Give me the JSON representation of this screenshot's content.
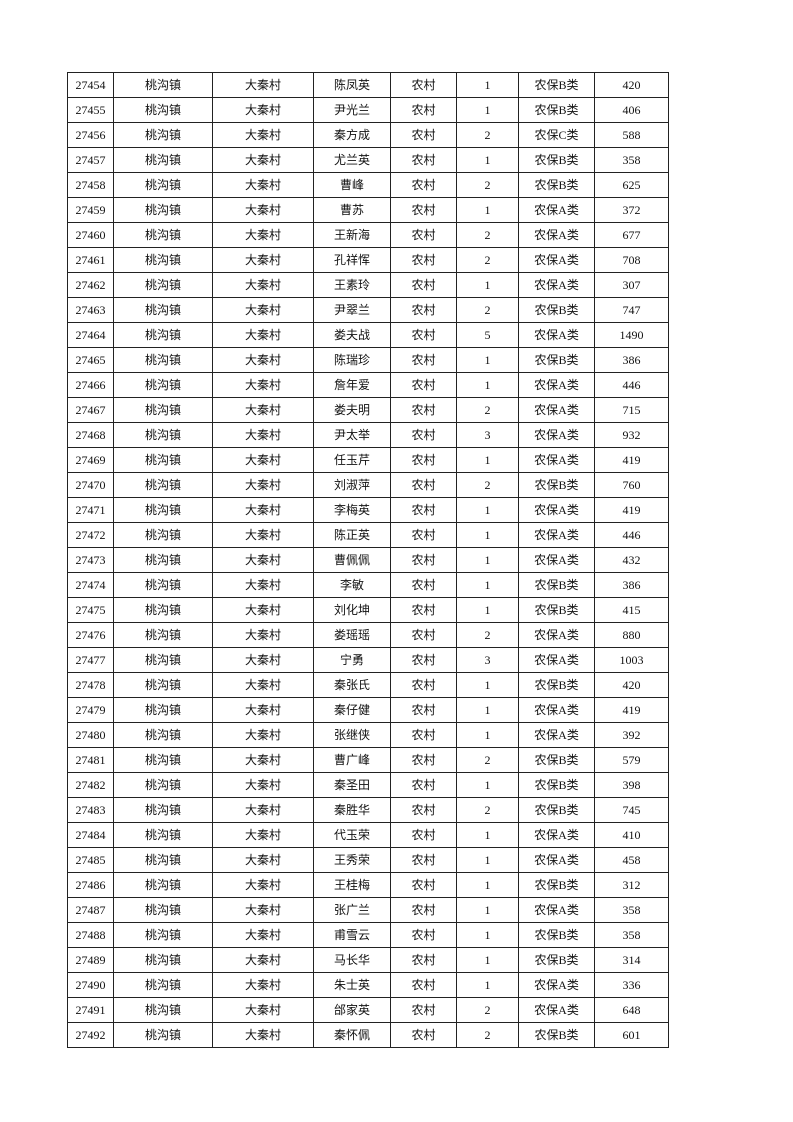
{
  "table": {
    "rows": [
      [
        "27454",
        "桃沟镇",
        "大秦村",
        "陈凤英",
        "农村",
        "1",
        "农保B类",
        "420"
      ],
      [
        "27455",
        "桃沟镇",
        "大秦村",
        "尹光兰",
        "农村",
        "1",
        "农保B类",
        "406"
      ],
      [
        "27456",
        "桃沟镇",
        "大秦村",
        "秦方成",
        "农村",
        "2",
        "农保C类",
        "588"
      ],
      [
        "27457",
        "桃沟镇",
        "大秦村",
        "尤兰英",
        "农村",
        "1",
        "农保B类",
        "358"
      ],
      [
        "27458",
        "桃沟镇",
        "大秦村",
        "曹峰",
        "农村",
        "2",
        "农保B类",
        "625"
      ],
      [
        "27459",
        "桃沟镇",
        "大秦村",
        "曹苏",
        "农村",
        "1",
        "农保A类",
        "372"
      ],
      [
        "27460",
        "桃沟镇",
        "大秦村",
        "王新海",
        "农村",
        "2",
        "农保A类",
        "677"
      ],
      [
        "27461",
        "桃沟镇",
        "大秦村",
        "孔祥恽",
        "农村",
        "2",
        "农保A类",
        "708"
      ],
      [
        "27462",
        "桃沟镇",
        "大秦村",
        "王素玲",
        "农村",
        "1",
        "农保A类",
        "307"
      ],
      [
        "27463",
        "桃沟镇",
        "大秦村",
        "尹翠兰",
        "农村",
        "2",
        "农保B类",
        "747"
      ],
      [
        "27464",
        "桃沟镇",
        "大秦村",
        "娄夫战",
        "农村",
        "5",
        "农保A类",
        "1490"
      ],
      [
        "27465",
        "桃沟镇",
        "大秦村",
        "陈瑞珍",
        "农村",
        "1",
        "农保B类",
        "386"
      ],
      [
        "27466",
        "桃沟镇",
        "大秦村",
        "詹年爱",
        "农村",
        "1",
        "农保A类",
        "446"
      ],
      [
        "27467",
        "桃沟镇",
        "大秦村",
        "娄夫明",
        "农村",
        "2",
        "农保A类",
        "715"
      ],
      [
        "27468",
        "桃沟镇",
        "大秦村",
        "尹太举",
        "农村",
        "3",
        "农保A类",
        "932"
      ],
      [
        "27469",
        "桃沟镇",
        "大秦村",
        "任玉芹",
        "农村",
        "1",
        "农保A类",
        "419"
      ],
      [
        "27470",
        "桃沟镇",
        "大秦村",
        "刘淑萍",
        "农村",
        "2",
        "农保B类",
        "760"
      ],
      [
        "27471",
        "桃沟镇",
        "大秦村",
        "李梅英",
        "农村",
        "1",
        "农保A类",
        "419"
      ],
      [
        "27472",
        "桃沟镇",
        "大秦村",
        "陈正英",
        "农村",
        "1",
        "农保A类",
        "446"
      ],
      [
        "27473",
        "桃沟镇",
        "大秦村",
        "曹佩佩",
        "农村",
        "1",
        "农保A类",
        "432"
      ],
      [
        "27474",
        "桃沟镇",
        "大秦村",
        "李敏",
        "农村",
        "1",
        "农保B类",
        "386"
      ],
      [
        "27475",
        "桃沟镇",
        "大秦村",
        "刘化坤",
        "农村",
        "1",
        "农保B类",
        "415"
      ],
      [
        "27476",
        "桃沟镇",
        "大秦村",
        "娄瑶瑶",
        "农村",
        "2",
        "农保A类",
        "880"
      ],
      [
        "27477",
        "桃沟镇",
        "大秦村",
        "宁勇",
        "农村",
        "3",
        "农保A类",
        "1003"
      ],
      [
        "27478",
        "桃沟镇",
        "大秦村",
        "秦张氏",
        "农村",
        "1",
        "农保B类",
        "420"
      ],
      [
        "27479",
        "桃沟镇",
        "大秦村",
        "秦仔健",
        "农村",
        "1",
        "农保A类",
        "419"
      ],
      [
        "27480",
        "桃沟镇",
        "大秦村",
        "张继侠",
        "农村",
        "1",
        "农保A类",
        "392"
      ],
      [
        "27481",
        "桃沟镇",
        "大秦村",
        "曹广峰",
        "农村",
        "2",
        "农保B类",
        "579"
      ],
      [
        "27482",
        "桃沟镇",
        "大秦村",
        "秦圣田",
        "农村",
        "1",
        "农保B类",
        "398"
      ],
      [
        "27483",
        "桃沟镇",
        "大秦村",
        "秦胜华",
        "农村",
        "2",
        "农保B类",
        "745"
      ],
      [
        "27484",
        "桃沟镇",
        "大秦村",
        "代玉荣",
        "农村",
        "1",
        "农保A类",
        "410"
      ],
      [
        "27485",
        "桃沟镇",
        "大秦村",
        "王秀荣",
        "农村",
        "1",
        "农保A类",
        "458"
      ],
      [
        "27486",
        "桃沟镇",
        "大秦村",
        "王桂梅",
        "农村",
        "1",
        "农保B类",
        "312"
      ],
      [
        "27487",
        "桃沟镇",
        "大秦村",
        "张广兰",
        "农村",
        "1",
        "农保A类",
        "358"
      ],
      [
        "27488",
        "桃沟镇",
        "大秦村",
        "甫雪云",
        "农村",
        "1",
        "农保B类",
        "358"
      ],
      [
        "27489",
        "桃沟镇",
        "大秦村",
        "马长华",
        "农村",
        "1",
        "农保B类",
        "314"
      ],
      [
        "27490",
        "桃沟镇",
        "大秦村",
        "朱士英",
        "农村",
        "1",
        "农保A类",
        "336"
      ],
      [
        "27491",
        "桃沟镇",
        "大秦村",
        "邰家英",
        "农村",
        "2",
        "农保A类",
        "648"
      ],
      [
        "27492",
        "桃沟镇",
        "大秦村",
        "秦怀佩",
        "农村",
        "2",
        "农保B类",
        "601"
      ]
    ]
  }
}
